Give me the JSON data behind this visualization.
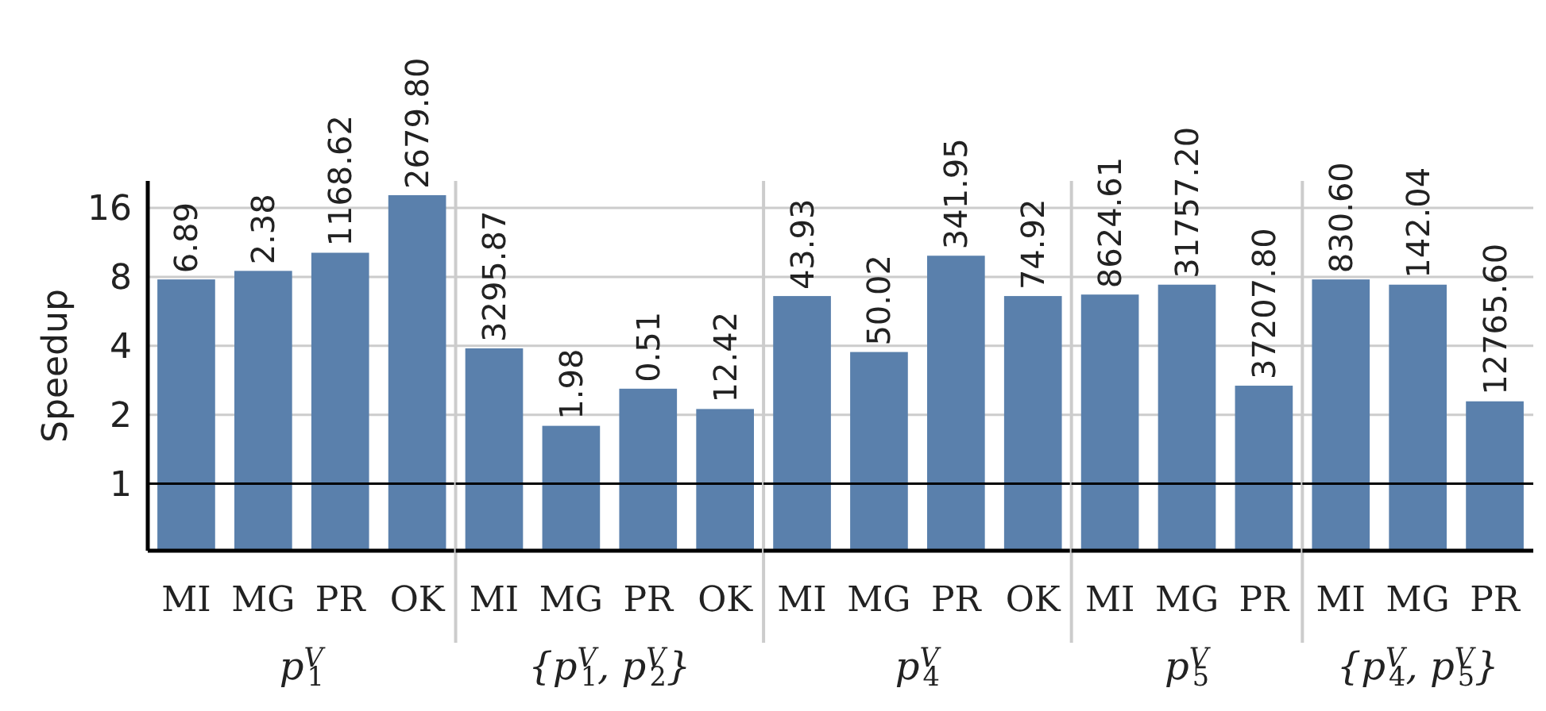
{
  "chart_data": [
    {
      "type": "bar",
      "ylabel": "Speedup",
      "xlabel": "p$^{V}$$_{1}$",
      "categories": [
        "MI",
        "MG",
        "PR",
        "OK"
      ],
      "values": [
        7.8,
        8.5,
        10.2,
        18.2
      ],
      "annotations": [
        {
          "text": "6.89",
          "x": "MI",
          "y": 7.8
        },
        {
          "text": "2.38",
          "x": "MG",
          "y": 8.5
        },
        {
          "text": "1168.62",
          "x": "PR",
          "y": 10.2
        },
        {
          "text": "2679.80",
          "x": "OK",
          "y": 18.2
        }
      ],
      "color": "#5a80ac",
      "log": "y",
      "ylim": [
        0.51,
        21
      ],
      "yticks": [
        1,
        2,
        4,
        8,
        16
      ],
      "grid": "y",
      "ref_lines": [
        {
          "axis": "y",
          "value": 1,
          "color": "#000000"
        }
      ]
    },
    {
      "type": "bar",
      "xlabel": "{p$^{V}$$_{1}$, p$^{V}$$_{2}$}",
      "categories": [
        "MI",
        "MG",
        "PR",
        "OK"
      ],
      "values": [
        3.9,
        1.79,
        2.6,
        2.12
      ],
      "annotations": [
        {
          "text": "3295.87",
          "x": "MI",
          "y": 3.9
        },
        {
          "text": "1.98",
          "x": "MG",
          "y": 1.79
        },
        {
          "text": "0.51",
          "x": "PR",
          "y": 2.6
        },
        {
          "text": "12.42",
          "x": "OK",
          "y": 2.12
        }
      ],
      "color": "#5a80ac",
      "log": "y",
      "ylim": [
        0.51,
        21
      ],
      "yticks": [
        1,
        2,
        4,
        8,
        16
      ],
      "grid": "y",
      "tick_labels": "x",
      "ref_lines": [
        {
          "axis": "y",
          "value": 1,
          "color": "#000000"
        }
      ]
    },
    {
      "type": "bar",
      "xlabel": "p$^{V}$$_{4}$",
      "categories": [
        "MI",
        "MG",
        "PR",
        "OK"
      ],
      "values": [
        6.6,
        3.76,
        9.9,
        6.6
      ],
      "annotations": [
        {
          "text": "43.93",
          "x": "MI",
          "y": 6.6
        },
        {
          "text": "50.02",
          "x": "MG",
          "y": 3.76
        },
        {
          "text": "341.95",
          "x": "PR",
          "y": 9.9
        },
        {
          "text": "74.92",
          "x": "OK",
          "y": 6.6
        }
      ],
      "color": "#5a80ac",
      "log": "y",
      "ylim": [
        0.51,
        21
      ],
      "yticks": [
        1,
        2,
        4,
        8,
        16
      ],
      "grid": "y",
      "tick_labels": "x",
      "ref_lines": [
        {
          "axis": "y",
          "value": 1,
          "color": "#000000"
        }
      ]
    },
    {
      "type": "bar",
      "xlabel": "p$^{V}$$_{5}$",
      "categories": [
        "MI",
        "MG",
        "PR"
      ],
      "values": [
        6.7,
        7.4,
        2.68
      ],
      "annotations": [
        {
          "text": "8624.61",
          "x": "MI",
          "y": 6.7
        },
        {
          "text": "31757.20",
          "x": "MG",
          "y": 7.4
        },
        {
          "text": "37207.80",
          "x": "PR",
          "y": 2.68
        }
      ],
      "color": "#5a80ac",
      "log": "y",
      "ylim": [
        0.51,
        21
      ],
      "yticks": [
        1,
        2,
        4,
        8,
        16
      ],
      "grid": "y",
      "tick_labels": "x",
      "ref_lines": [
        {
          "axis": "y",
          "value": 1,
          "color": "#000000"
        }
      ]
    },
    {
      "type": "bar",
      "xlabel": "{p$^{V}$$_{4}$, p$^{V}$$_{5}$}",
      "categories": [
        "MI",
        "MG",
        "PR"
      ],
      "values": [
        7.8,
        7.4,
        2.29
      ],
      "annotations": [
        {
          "text": "830.60",
          "x": "MI",
          "y": 7.8
        },
        {
          "text": "142.04",
          "x": "MG",
          "y": 7.4
        },
        {
          "text": "12765.60",
          "x": "PR",
          "y": 2.29
        }
      ],
      "color": "#5a80ac",
      "log": "y",
      "ylim": [
        0.51,
        21
      ],
      "yticks": [
        1,
        2,
        4,
        8,
        16
      ],
      "grid": "y",
      "tick_labels": "x",
      "ref_lines": [
        {
          "axis": "y",
          "value": 1,
          "color": "#000000"
        }
      ]
    }
  ]
}
